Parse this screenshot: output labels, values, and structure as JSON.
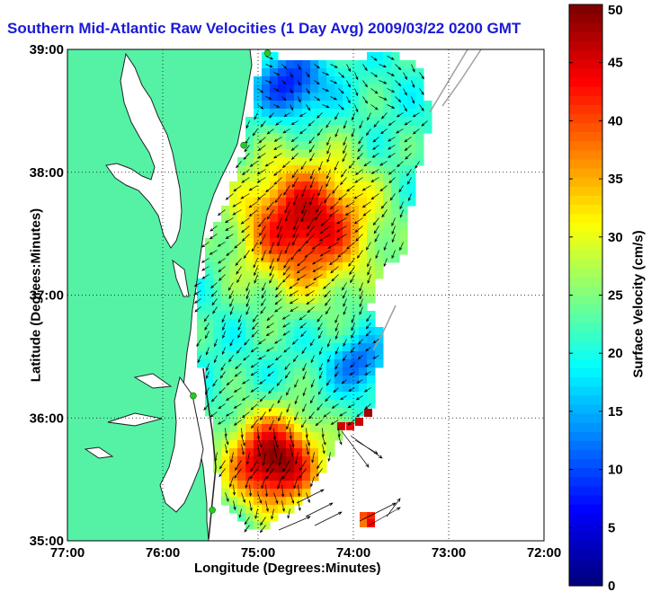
{
  "chart_data": {
    "type": "heatmap",
    "title": "Southern Mid-Atlantic Raw Velocities (1 Day Avg) 2009/03/22 0200 GMT",
    "xlabel": "Longitude (Degrees:Minutes)",
    "ylabel": "Latitude (Degrees:Minutes)",
    "colorbar_label": "Surface Velocity (cm/s)",
    "x_ticks": [
      "77:00",
      "76:00",
      "75:00",
      "74:00",
      "73:00",
      "72:00"
    ],
    "y_ticks": [
      "39:00",
      "38:00",
      "37:00",
      "36:00",
      "35:00"
    ],
    "colorbar_ticks": [
      "50",
      "45",
      "40",
      "35",
      "30",
      "25",
      "20",
      "15",
      "10",
      "5",
      "0"
    ],
    "xlim": [
      -77,
      -72
    ],
    "ylim": [
      35,
      39
    ],
    "clim": [
      0,
      50
    ],
    "grid": true,
    "colormap": "jet",
    "land_color": "#55f2a6",
    "coast_color": "#222222",
    "shelf_contour_color": "#a0a0a0",
    "station_color": "#22cc22",
    "stations": [
      {
        "lon": -74.9,
        "lat": 38.97
      },
      {
        "lon": -75.15,
        "lat": 38.22
      },
      {
        "lon": -75.68,
        "lat": 36.18
      },
      {
        "lon": -75.48,
        "lat": 35.25
      }
    ]
  }
}
